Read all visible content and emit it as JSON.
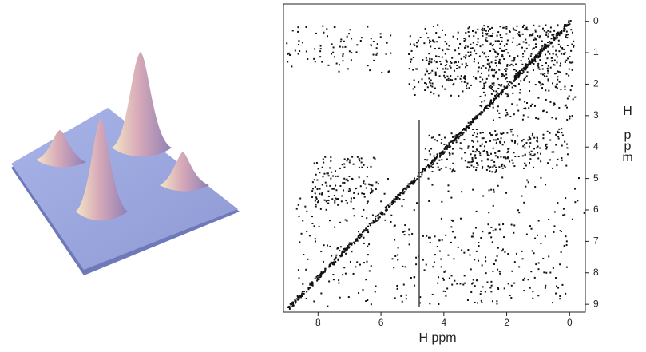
{
  "spectrum": {
    "xticks": [
      8,
      6,
      4,
      2,
      0
    ],
    "yticks": [
      0,
      1,
      2,
      3,
      4,
      5,
      6,
      7,
      8,
      9
    ],
    "xlim": [
      9.1,
      -0.5
    ],
    "ylim": [
      -0.55,
      9.25
    ],
    "xlabel": "H ppm",
    "ylabel_lines": [
      "H",
      "p",
      "p",
      "m"
    ]
  }
}
